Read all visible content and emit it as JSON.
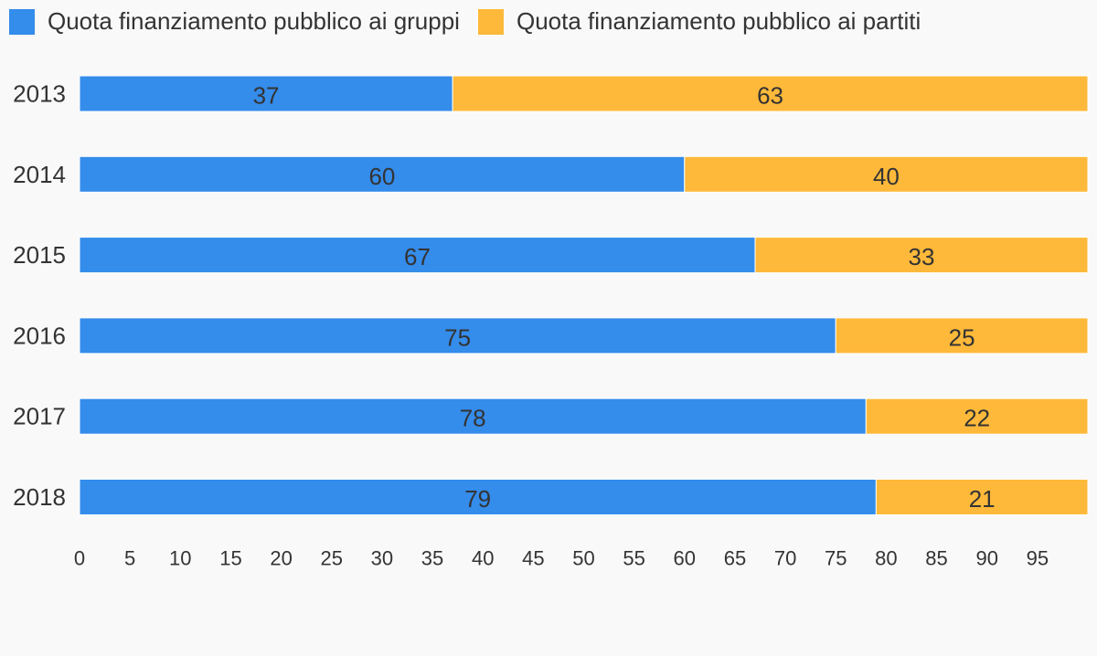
{
  "chart_data": {
    "type": "bar",
    "orientation": "horizontal",
    "stacked": true,
    "categories": [
      "2013",
      "2014",
      "2015",
      "2016",
      "2017",
      "2018"
    ],
    "series": [
      {
        "name": "Quota finanziamento pubblico ai gruppi",
        "color": "#348ceb",
        "values": [
          37,
          60,
          67,
          75,
          78,
          79
        ]
      },
      {
        "name": "Quota finanziamento pubblico ai partiti",
        "color": "#ffb93a",
        "values": [
          63,
          40,
          33,
          25,
          22,
          21
        ]
      }
    ],
    "xlim": [
      0,
      100
    ],
    "xticks": [
      0,
      5,
      10,
      15,
      20,
      25,
      30,
      35,
      40,
      45,
      50,
      55,
      60,
      65,
      70,
      75,
      80,
      85,
      90,
      95
    ],
    "grid": false,
    "legend_position": "top-left",
    "data_labels": true
  }
}
